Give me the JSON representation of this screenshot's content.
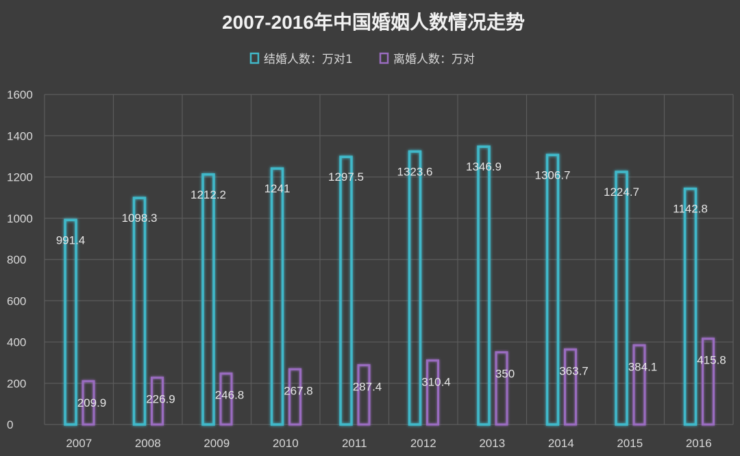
{
  "chart_data": {
    "type": "bar",
    "title": "2007-2016年中国婚姻人数情况走势",
    "xlabel": "",
    "ylabel": "",
    "categories": [
      "2007",
      "2008",
      "2009",
      "2010",
      "2011",
      "2012",
      "2013",
      "2014",
      "2015",
      "2016"
    ],
    "series": [
      {
        "name": "结婚人数：万对1",
        "values": [
          991.4,
          1098.3,
          1212.2,
          1241,
          1297.5,
          1323.6,
          1346.9,
          1306.7,
          1224.7,
          1142.8
        ],
        "labels": [
          "991.4",
          "1098.3",
          "1212.2",
          "1241",
          "1297.5",
          "1323.6",
          "1346.9",
          "1306.7",
          "1224.7",
          "1142.8"
        ],
        "color": "#41b8c9"
      },
      {
        "name": "离婚人数：万对",
        "values": [
          209.9,
          226.9,
          246.8,
          267.8,
          287.4,
          310.4,
          350,
          363.7,
          384.1,
          415.8
        ],
        "labels": [
          "209.9",
          "226.9",
          "246.8",
          "267.8",
          "287.4",
          "310.4",
          "350",
          "363.7",
          "384.1",
          "415.8"
        ],
        "color": "#9a6cc0"
      }
    ],
    "ylim": [
      0,
      1600
    ],
    "yticks": [
      "0",
      "200",
      "400",
      "600",
      "800",
      "1000",
      "1200",
      "1400",
      "1600"
    ],
    "grid": true,
    "legend_position": "top-center",
    "colors": {
      "background": "#3d3d3d",
      "grid": "#5c5c5c",
      "text": "#d9d9d9"
    }
  }
}
